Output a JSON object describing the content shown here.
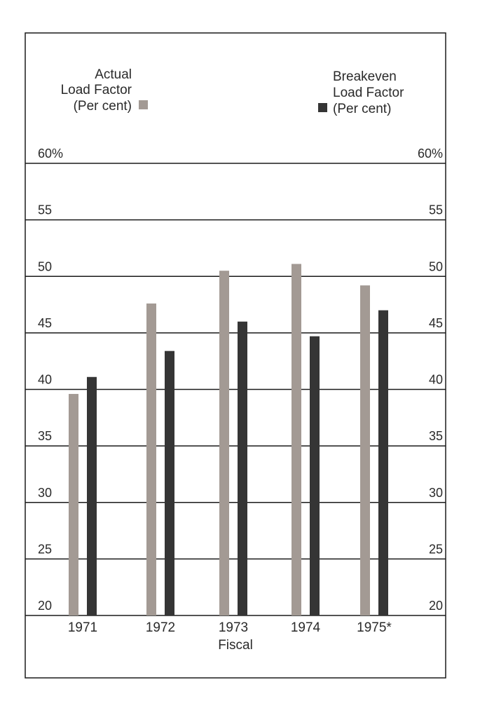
{
  "chart_data": {
    "type": "bar",
    "categories": [
      "1971",
      "1972",
      "1973",
      "1974",
      "1975*"
    ],
    "series": [
      {
        "name": "Actual Load Factor (Per cent)",
        "legend_lines": [
          "Actual",
          "Load Factor",
          "(Per cent)"
        ],
        "color": "#a39a94",
        "values": [
          39.6,
          47.6,
          50.5,
          51.1,
          49.2
        ]
      },
      {
        "name": "Breakeven Load Factor (Per cent)",
        "legend_lines": [
          "Breakeven",
          "Load Factor",
          "(Per cent)"
        ],
        "color": "#353535",
        "values": [
          41.1,
          43.4,
          46.0,
          44.7,
          47.0
        ]
      }
    ],
    "yticks": [
      {
        "value": 20,
        "label": "20"
      },
      {
        "value": 25,
        "label": "25"
      },
      {
        "value": 30,
        "label": "30"
      },
      {
        "value": 35,
        "label": "35"
      },
      {
        "value": 40,
        "label": "40"
      },
      {
        "value": 45,
        "label": "45"
      },
      {
        "value": 50,
        "label": "50"
      },
      {
        "value": 55,
        "label": "55"
      },
      {
        "value": 60,
        "label": "60%"
      }
    ],
    "ylim": [
      20,
      60
    ],
    "xlabel": "Fiscal",
    "ylabel": "",
    "title": "",
    "grid": true,
    "legend_position": "top"
  }
}
